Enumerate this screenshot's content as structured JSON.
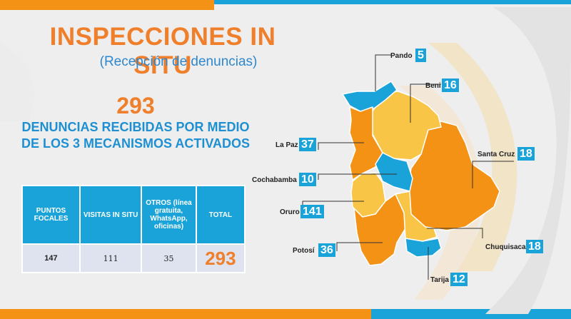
{
  "title": "INSPECCIONES IN SITU",
  "subtitle": "(Recepción de denuncias)",
  "total": "293",
  "description": "DENUNCIAS RECIBIDAS POR MEDIO DE LOS 3 MECANISMOS ACTIVADOS",
  "table": {
    "headers": [
      "PUNTOS FOCALES",
      "VISITAS IN SITU",
      "OTROS (línea gratuita, WhatsApp, oficinas)",
      "TOTAL"
    ],
    "row": [
      "147",
      "111",
      "35",
      "293"
    ]
  },
  "regions": [
    {
      "name": "Pando",
      "value": "5"
    },
    {
      "name": "Beni",
      "value": "16"
    },
    {
      "name": "La Paz",
      "value": "37"
    },
    {
      "name": "Santa Cruz",
      "value": "18"
    },
    {
      "name": "Cochabamba",
      "value": "10"
    },
    {
      "name": "Oruro",
      "value": "141"
    },
    {
      "name": "Chuquisaca",
      "value": "18"
    },
    {
      "name": "Potosí",
      "value": "36"
    },
    {
      "name": "Tarija",
      "value": "12"
    }
  ],
  "colors": {
    "orange": "#f39214",
    "blue": "#1aa3d9",
    "yellow": "#f9c546",
    "title": "#f07f2b"
  }
}
